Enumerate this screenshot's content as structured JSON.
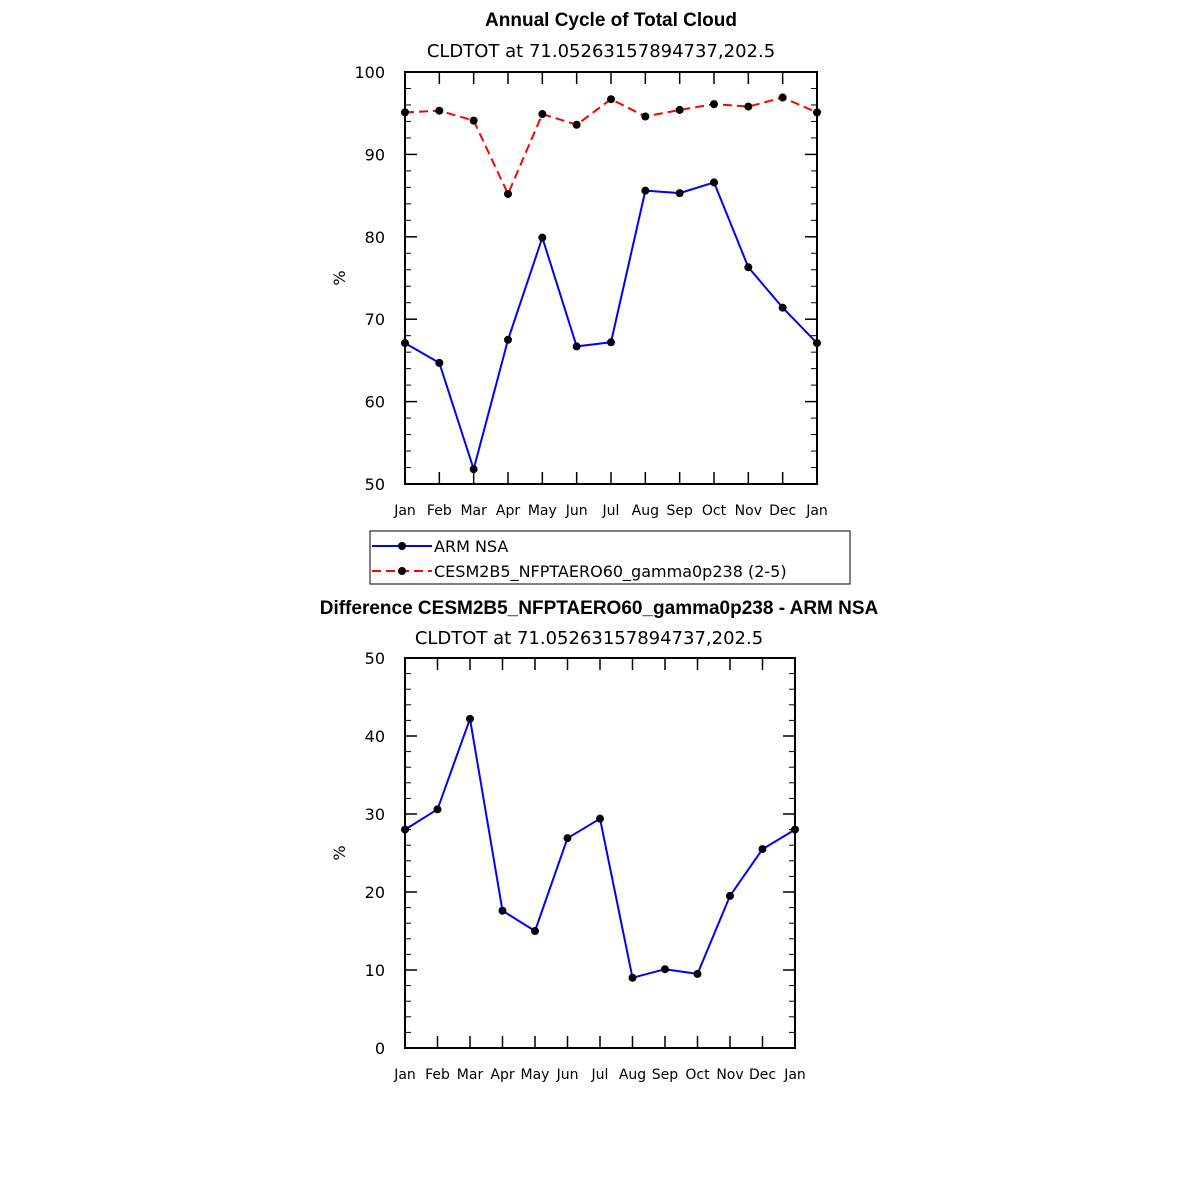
{
  "chart_data": [
    {
      "type": "line",
      "title": "Annual Cycle of Total Cloud",
      "subtitle": "CLDTOT at 71.05263157894737,202.5",
      "ylabel": "%",
      "xlabel": "",
      "categories": [
        "Jan",
        "Feb",
        "Mar",
        "Apr",
        "May",
        "Jun",
        "Jul",
        "Aug",
        "Sep",
        "Oct",
        "Nov",
        "Dec",
        "Jan"
      ],
      "ylim": [
        50,
        100
      ],
      "yticks": [
        50,
        60,
        70,
        80,
        90,
        100
      ],
      "grid": false,
      "legend_position": "bottom",
      "series": [
        {
          "name": "ARM NSA",
          "color": "#0000ff",
          "dash": "solid",
          "values": [
            67.1,
            64.7,
            51.8,
            67.5,
            79.9,
            66.7,
            67.2,
            85.6,
            85.3,
            86.6,
            76.3,
            71.4,
            67.1
          ]
        },
        {
          "name": "CESM2B5_NFPTAERO60_gamma0p238 (2-5)",
          "color": "#ff0000",
          "dash": "dashed",
          "values": [
            95.1,
            95.3,
            94.1,
            85.2,
            94.9,
            93.6,
            96.7,
            94.6,
            95.4,
            96.1,
            95.8,
            96.9,
            95.1
          ]
        }
      ]
    },
    {
      "type": "line",
      "title": "Difference CESM2B5_NFPTAERO60_gamma0p238 - ARM NSA",
      "subtitle": "CLDTOT at 71.05263157894737,202.5",
      "ylabel": "%",
      "xlabel": "",
      "categories": [
        "Jan",
        "Feb",
        "Mar",
        "Apr",
        "May",
        "Jun",
        "Jul",
        "Aug",
        "Sep",
        "Oct",
        "Nov",
        "Dec",
        "Jan"
      ],
      "ylim": [
        0,
        50
      ],
      "yticks": [
        0,
        10,
        20,
        30,
        40,
        50
      ],
      "grid": false,
      "series": [
        {
          "color": "#0000ff",
          "dash": "solid",
          "values": [
            28.0,
            30.6,
            42.2,
            17.6,
            15.0,
            26.9,
            29.4,
            9.0,
            10.1,
            9.5,
            19.5,
            25.5,
            28.0
          ]
        }
      ]
    }
  ]
}
